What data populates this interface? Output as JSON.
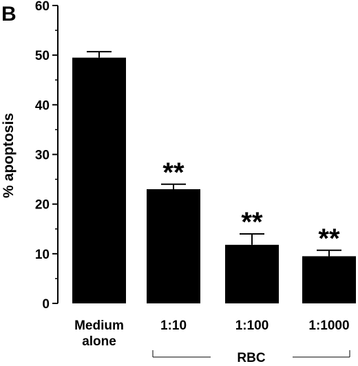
{
  "panel_label": "B",
  "chart_data": {
    "type": "bar",
    "categories": [
      [
        "Medium",
        "alone"
      ],
      [
        "1:10"
      ],
      [
        "1:100"
      ],
      [
        "1:1000"
      ]
    ],
    "values": [
      49.5,
      23.0,
      11.8,
      9.5
    ],
    "error": [
      1.2,
      1.0,
      2.2,
      1.2
    ],
    "annotations": [
      "",
      "**",
      "**",
      "**"
    ],
    "ylabel": "% apoptosis",
    "ylim": [
      0,
      60
    ],
    "yticks": [
      "0",
      "10",
      "20",
      "30",
      "40",
      "50",
      "60"
    ],
    "group_label": "RBC",
    "bar_color": "#000000",
    "grid": false
  }
}
